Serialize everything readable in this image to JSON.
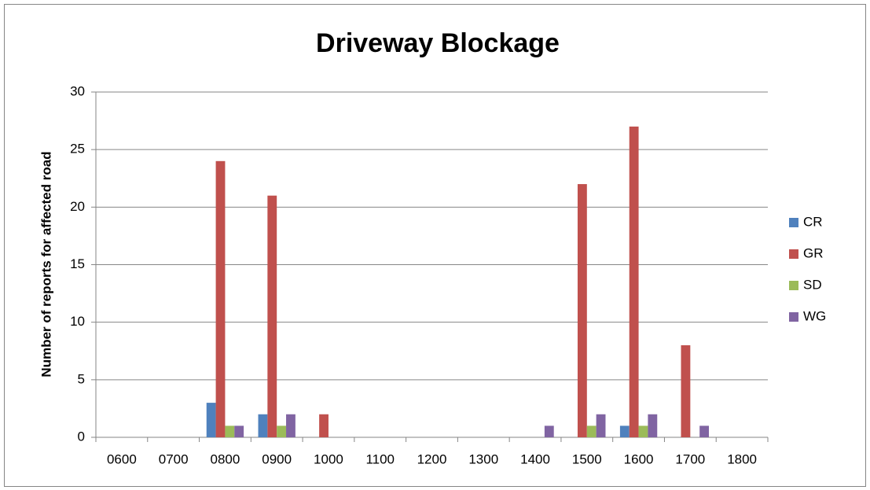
{
  "chart_data": {
    "type": "bar",
    "title": "Driveway Blockage",
    "y_label": "Number of reports for affected road",
    "categories": [
      "0600",
      "0700",
      "0800",
      "0900",
      "1000",
      "1100",
      "1200",
      "1300",
      "1400",
      "1500",
      "1600",
      "1700",
      "1800"
    ],
    "series": [
      {
        "name": "CR",
        "color": "#4f81bd",
        "values": [
          0,
          0,
          3,
          2,
          0,
          0,
          0,
          0,
          0,
          0,
          1,
          0,
          0
        ]
      },
      {
        "name": "GR",
        "color": "#c0504d",
        "values": [
          0,
          0,
          24,
          21,
          2,
          0,
          0,
          0,
          0,
          22,
          27,
          8,
          0
        ]
      },
      {
        "name": "SD",
        "color": "#9bbb59",
        "values": [
          0,
          0,
          1,
          1,
          0,
          0,
          0,
          0,
          0,
          1,
          1,
          0,
          0
        ]
      },
      {
        "name": "WG",
        "color": "#8064a2",
        "values": [
          0,
          0,
          1,
          2,
          0,
          0,
          0,
          0,
          1,
          2,
          2,
          1,
          0
        ]
      }
    ],
    "ylim": [
      0,
      30
    ],
    "yticks": [
      0,
      5,
      10,
      15,
      20,
      25,
      30
    ],
    "grid": true,
    "legend": "right"
  }
}
